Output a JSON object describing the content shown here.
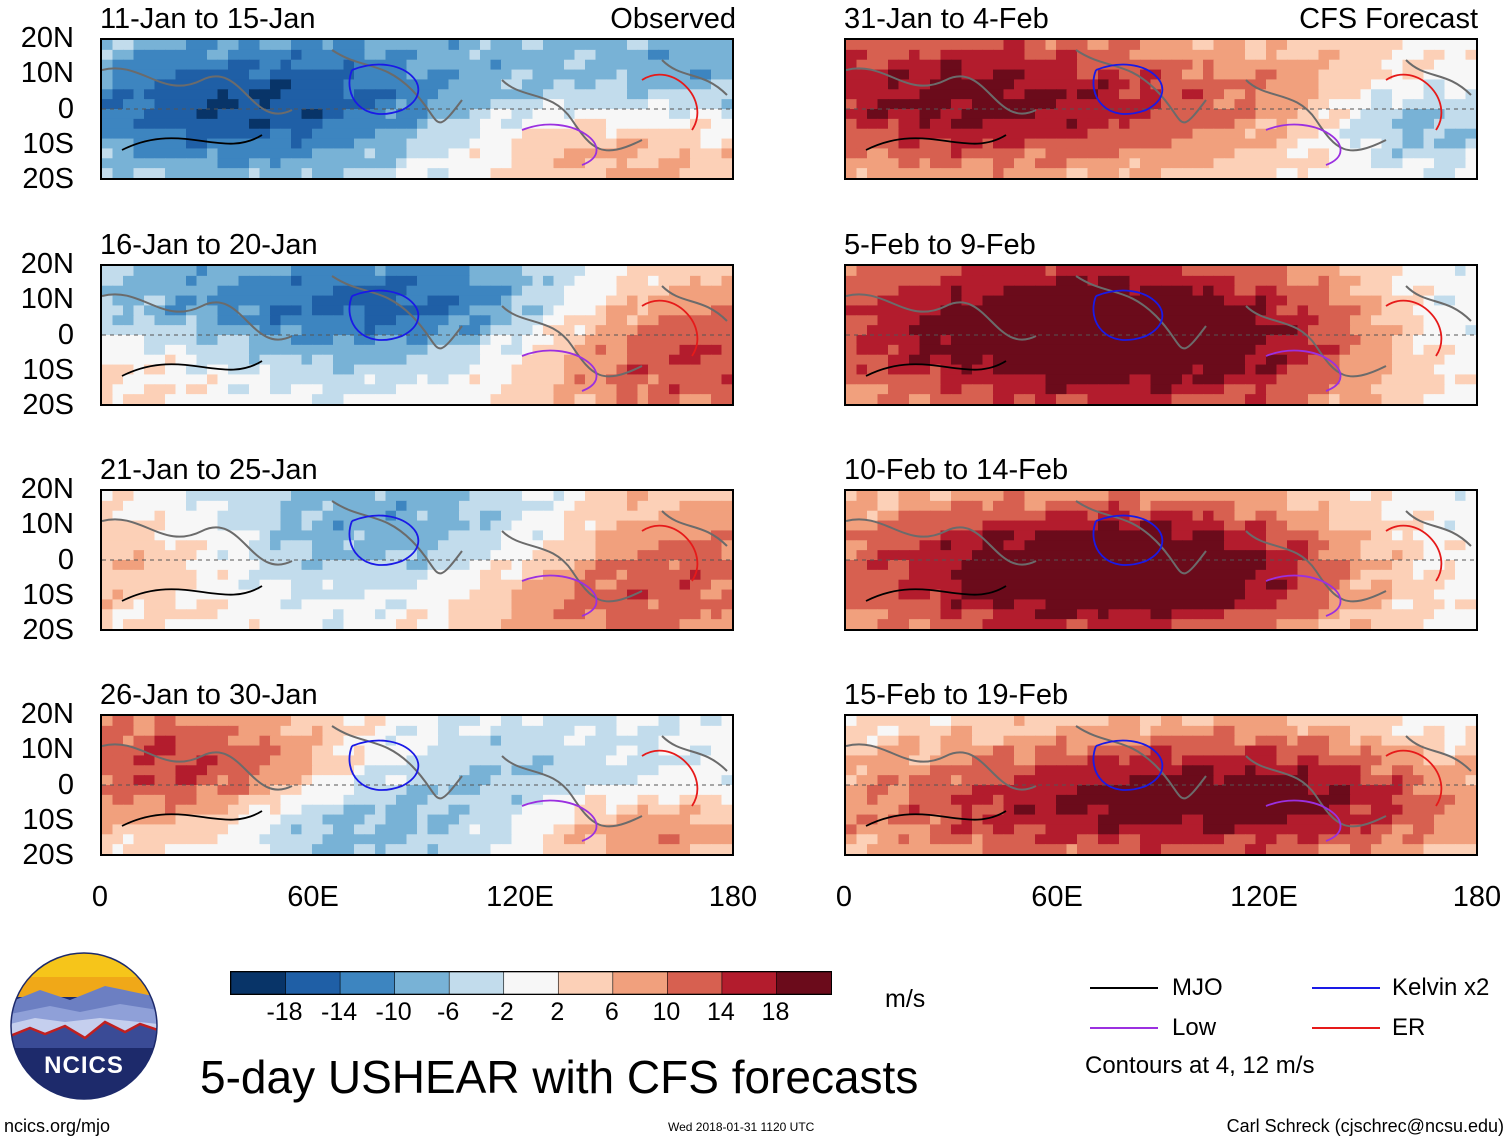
{
  "title": "5-day USHEAR with CFS forecasts",
  "left_header": "Observed",
  "right_header": "CFS Forecast",
  "panels_left": [
    {
      "label": "11-Jan to 15-Jan",
      "regime": "obs1"
    },
    {
      "label": "16-Jan to 20-Jan",
      "regime": "obs2"
    },
    {
      "label": "21-Jan to 25-Jan",
      "regime": "obs3"
    },
    {
      "label": "26-Jan to 30-Jan",
      "regime": "obs4"
    }
  ],
  "panels_right": [
    {
      "label": "31-Jan to 4-Feb",
      "regime": "fc1"
    },
    {
      "label": "5-Feb to 9-Feb",
      "regime": "fc2"
    },
    {
      "label": "10-Feb to 14-Feb",
      "regime": "fc3"
    },
    {
      "label": "15-Feb to 19-Feb",
      "regime": "fc4"
    }
  ],
  "lat_labels": [
    "20N",
    "10N",
    "0",
    "10S",
    "20S"
  ],
  "lon_labels": [
    "0",
    "60E",
    "120E",
    "180"
  ],
  "colorbar": {
    "units": "m/s",
    "tick_labels": [
      "-18",
      "-14",
      "-10",
      "-6",
      "-2",
      "2",
      "6",
      "10",
      "14",
      "18"
    ],
    "colors": [
      "#083468",
      "#1f5fa6",
      "#3d85c0",
      "#78b2d6",
      "#c2dcec",
      "#f7f7f7",
      "#fcd0b7",
      "#f1a07d",
      "#d76050",
      "#b31c2d",
      "#6b0b1b"
    ]
  },
  "legend": {
    "items": [
      {
        "label": "MJO",
        "color": "#000000"
      },
      {
        "label": "Kelvin x2",
        "color": "#1a1ae6"
      },
      {
        "label": "Low",
        "color": "#9b30e0"
      },
      {
        "label": "ER",
        "color": "#e61a1a"
      }
    ],
    "note": "Contours at 4, 12 m/s"
  },
  "logo_text": "NCICS",
  "footer": {
    "left": "ncics.org/mjo",
    "center": "Wed 2018-01-31 1120 UTC",
    "right": "Carl Schreck (cjschrec@ncsu.edu)"
  }
}
